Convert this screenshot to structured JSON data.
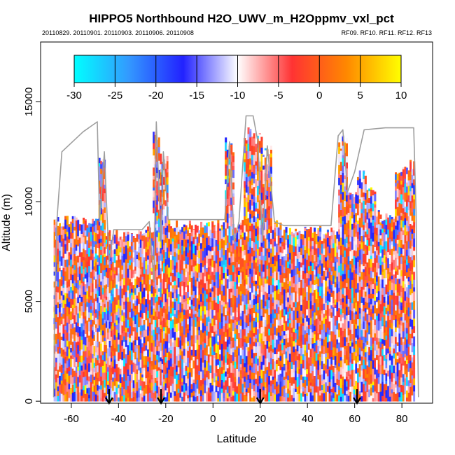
{
  "chart_data": {
    "type": "heatmap",
    "title": "HIPPO5 Northbound H2O_UWV_m_H2Oppmv_vxl_pct",
    "subtitle_left": "20110829. 20110901. 20110903. 20110906. 20110908",
    "subtitle_right": "RF09. RF10. RF11. RF12. RF13",
    "xlabel": "Latitude",
    "ylabel": "Altitude (m)",
    "xlim": [
      -73,
      93
    ],
    "ylim": [
      -100,
      18000
    ],
    "x_ticks": [
      "-60",
      "-40",
      "-20",
      "0",
      "20",
      "40",
      "60",
      "80"
    ],
    "x_tick_values": [
      -60,
      -40,
      -20,
      0,
      20,
      40,
      60,
      80
    ],
    "y_ticks": [
      "0",
      "5000",
      "10000",
      "15000"
    ],
    "y_tick_values": [
      0,
      5000,
      10000,
      15000
    ],
    "colorbar": {
      "min": -30,
      "max": 10,
      "tick_labels": [
        "-30",
        "-25",
        "-20",
        "-15",
        "-10",
        "-5",
        "0",
        "5",
        "10"
      ],
      "tick_values": [
        -30,
        -25,
        -20,
        -15,
        -10,
        -5,
        0,
        5,
        10
      ],
      "palette": [
        "#00ffff",
        "#3399ff",
        "#2222ff",
        "#ffffff",
        "#ff3333",
        "#ff8800",
        "#ffff00"
      ]
    },
    "arrows_latitude": [
      -44,
      -22,
      20,
      61
    ],
    "profile_columns": [
      {
        "lat": -66,
        "top": 9200
      },
      {
        "lat": -63,
        "top": 9200
      },
      {
        "lat": -58,
        "top": 9200
      },
      {
        "lat": -54,
        "top": 9200
      },
      {
        "lat": -50,
        "top": 9200
      },
      {
        "lat": -47,
        "top": 12500
      },
      {
        "lat": -44,
        "top": 8500
      },
      {
        "lat": -40,
        "top": 8500
      },
      {
        "lat": -36,
        "top": 8500
      },
      {
        "lat": -32,
        "top": 8500
      },
      {
        "lat": -27,
        "top": 8700
      },
      {
        "lat": -24,
        "top": 13700
      },
      {
        "lat": -21,
        "top": 12500
      },
      {
        "lat": -17,
        "top": 9000
      },
      {
        "lat": -13,
        "top": 9000
      },
      {
        "lat": -9,
        "top": 9000
      },
      {
        "lat": -5,
        "top": 9000
      },
      {
        "lat": -1,
        "top": 9000
      },
      {
        "lat": 3,
        "top": 9000
      },
      {
        "lat": 7,
        "top": 13100
      },
      {
        "lat": 11,
        "top": 9000
      },
      {
        "lat": 15,
        "top": 13700
      },
      {
        "lat": 19,
        "top": 13500
      },
      {
        "lat": 23,
        "top": 12800
      },
      {
        "lat": 27,
        "top": 9000
      },
      {
        "lat": 31,
        "top": 8700
      },
      {
        "lat": 35,
        "top": 8700
      },
      {
        "lat": 39,
        "top": 8700
      },
      {
        "lat": 43,
        "top": 8700
      },
      {
        "lat": 47,
        "top": 8700
      },
      {
        "lat": 51,
        "top": 8700
      },
      {
        "lat": 55,
        "top": 13300
      },
      {
        "lat": 59,
        "top": 10500
      },
      {
        "lat": 63,
        "top": 11500
      },
      {
        "lat": 67,
        "top": 11000
      },
      {
        "lat": 71,
        "top": 9500
      },
      {
        "lat": 75,
        "top": 9500
      },
      {
        "lat": 79,
        "top": 12000
      },
      {
        "lat": 83,
        "top": 12000
      }
    ],
    "flight_track": [
      [
        -67.5,
        200
      ],
      [
        -67,
        5000
      ],
      [
        -66,
        9200
      ],
      [
        -64,
        12500
      ],
      [
        -55,
        13500
      ],
      [
        -49,
        14000
      ],
      [
        -48,
        9000
      ],
      [
        -46,
        12500
      ],
      [
        -44,
        7000
      ],
      [
        -42,
        8600
      ],
      [
        -30,
        8600
      ],
      [
        -27,
        9000
      ],
      [
        -25,
        6000
      ],
      [
        -24,
        14000
      ],
      [
        -22,
        8000
      ],
      [
        -21,
        12500
      ],
      [
        -19,
        9100
      ],
      [
        5,
        9100
      ],
      [
        7,
        13000
      ],
      [
        9,
        8000
      ],
      [
        11,
        9000
      ],
      [
        14,
        14300
      ],
      [
        17,
        14300
      ],
      [
        19,
        13000
      ],
      [
        21,
        8000
      ],
      [
        23,
        12800
      ],
      [
        26,
        9000
      ],
      [
        30,
        8800
      ],
      [
        50,
        8800
      ],
      [
        53,
        13300
      ],
      [
        55,
        13600
      ],
      [
        57,
        10500
      ],
      [
        60,
        11500
      ],
      [
        64,
        13600
      ],
      [
        73,
        13700
      ],
      [
        85,
        13700
      ],
      [
        86,
        9500
      ],
      [
        87,
        200
      ]
    ]
  }
}
